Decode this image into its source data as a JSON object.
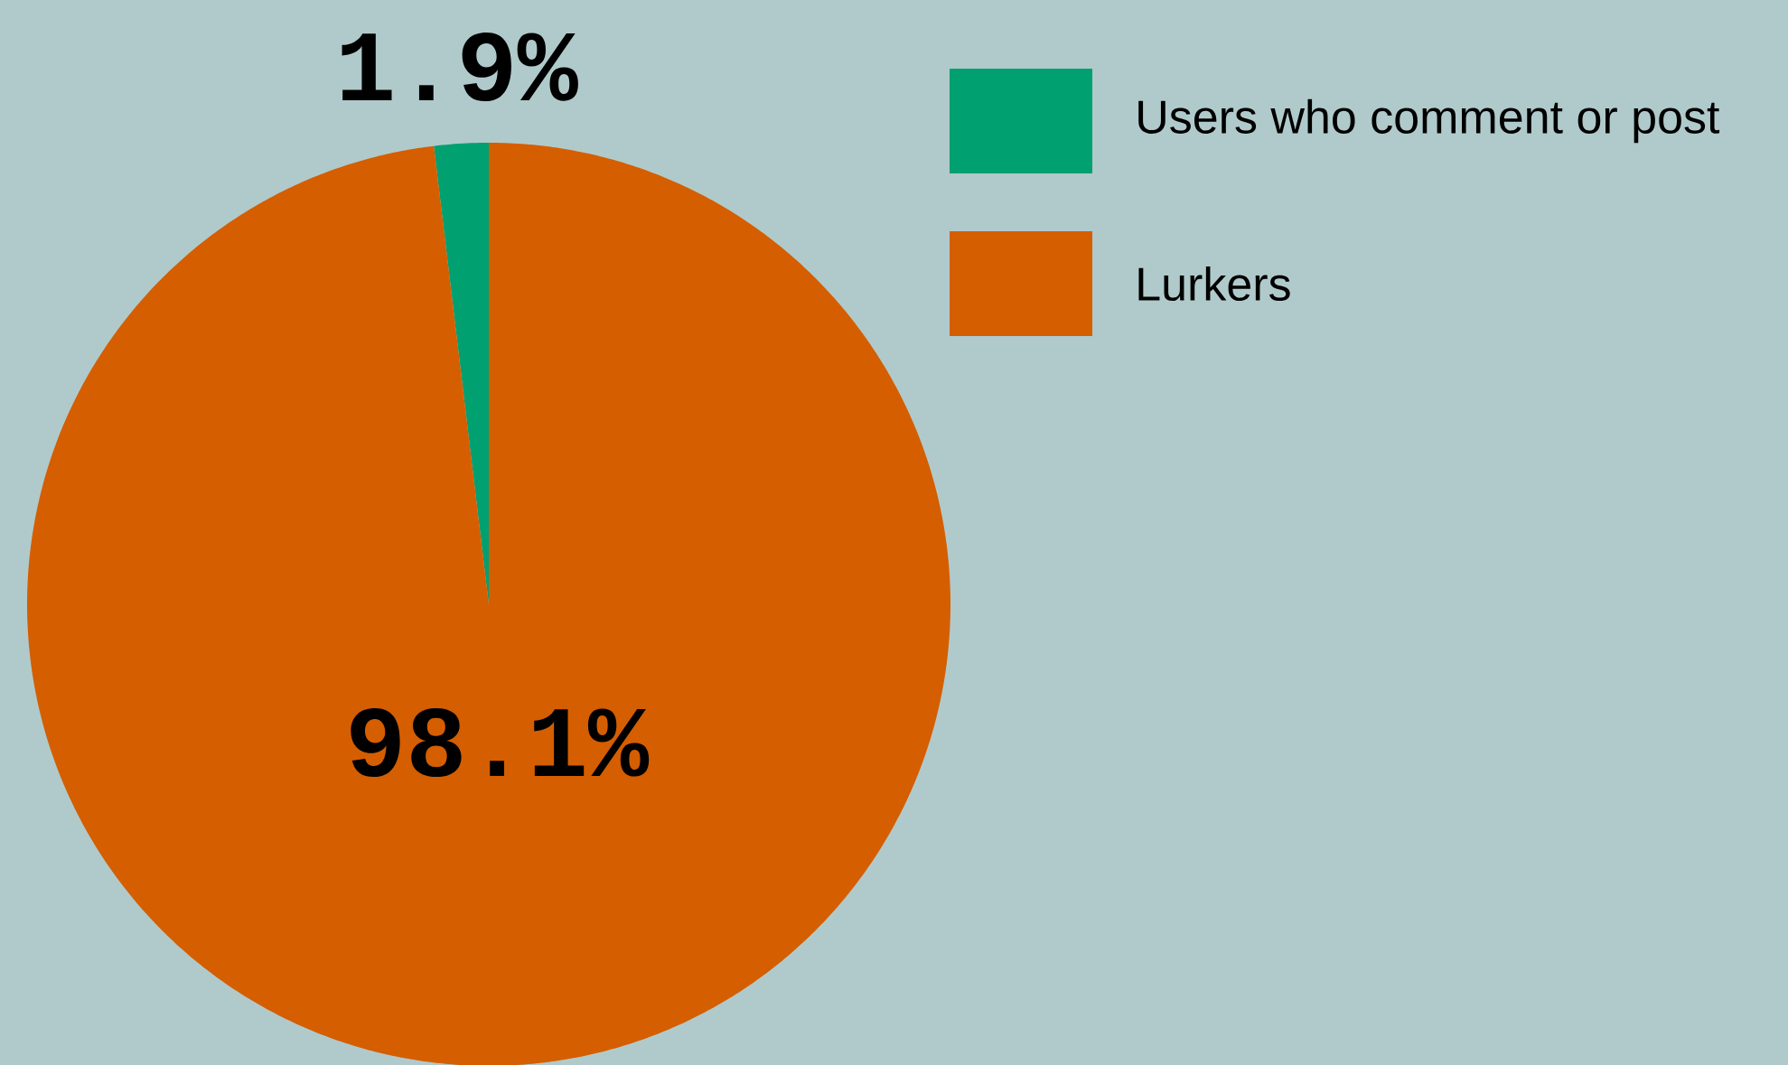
{
  "chart_data": {
    "type": "pie",
    "categories": [
      "Users who comment or post",
      "Lurkers"
    ],
    "values": [
      1.9,
      98.1
    ],
    "colors": [
      "#00a070",
      "#d55e00"
    ],
    "value_labels": [
      "1.9%",
      "98.1%"
    ],
    "legend": "top right"
  }
}
